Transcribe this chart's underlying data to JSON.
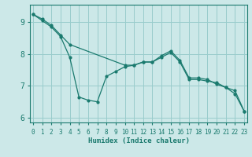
{
  "xlabel": "Humidex (Indice chaleur)",
  "bg_color": "#cce8e8",
  "grid_color": "#99cccc",
  "line_color": "#1a7a6e",
  "line1_x": [
    0,
    1,
    2,
    3,
    4,
    5,
    6,
    7,
    8,
    9,
    10,
    11,
    12,
    13,
    14,
    15,
    16,
    17,
    18,
    19,
    20,
    21,
    22,
    23
  ],
  "line1_y": [
    9.25,
    9.05,
    8.85,
    8.55,
    7.9,
    6.65,
    6.55,
    6.5,
    7.3,
    7.45,
    7.6,
    7.65,
    7.75,
    7.75,
    7.9,
    8.05,
    7.75,
    7.2,
    7.2,
    7.15,
    7.1,
    6.95,
    6.75,
    6.2
  ],
  "line2_x": [
    0,
    1,
    2,
    3,
    4,
    10,
    11,
    12,
    13,
    14,
    15,
    16,
    17,
    18,
    19,
    20,
    21,
    22,
    23
  ],
  "line2_y": [
    9.25,
    9.1,
    8.9,
    8.6,
    8.3,
    7.65,
    7.65,
    7.75,
    7.75,
    7.95,
    8.1,
    7.8,
    7.25,
    7.25,
    7.2,
    7.05,
    6.95,
    6.85,
    6.2
  ],
  "ylim": [
    5.85,
    9.55
  ],
  "xlim": [
    -0.3,
    23.3
  ],
  "yticks": [
    6,
    7,
    8,
    9
  ],
  "xticks": [
    0,
    1,
    2,
    3,
    4,
    5,
    6,
    7,
    8,
    9,
    10,
    11,
    12,
    13,
    14,
    15,
    16,
    17,
    18,
    19,
    20,
    21,
    22,
    23
  ]
}
